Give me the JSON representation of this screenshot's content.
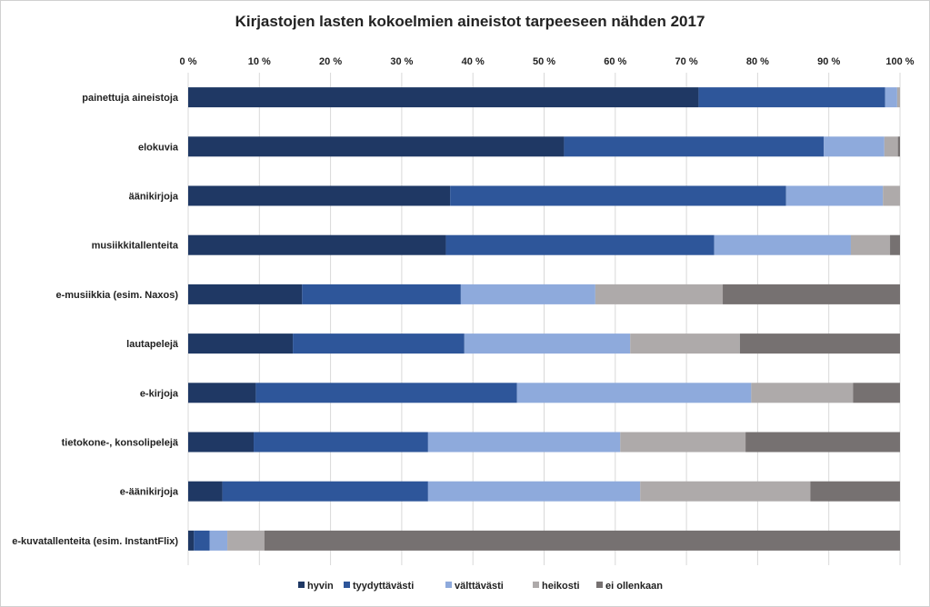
{
  "chart_data": {
    "type": "bar",
    "orientation": "horizontal",
    "stacked": true,
    "title": "Kirjastojen lasten kokoelmien aineistot tarpeeseen nähden 2017",
    "xlabel": "",
    "ylabel": "",
    "xlim": [
      0,
      100
    ],
    "x_ticks": [
      "0 %",
      "10 %",
      "20 %",
      "30 %",
      "40 %",
      "50 %",
      "60 %",
      "70 %",
      "80 %",
      "90 %",
      "100 %"
    ],
    "grid": true,
    "legend_position": "bottom",
    "categories": [
      "painettuja aineistoja",
      "elokuvia",
      "äänikirjoja",
      "musiikkitallenteita",
      "e-musiikkia (esim. Naxos)",
      "lautapelejä",
      "e-kirjoja",
      "tietokone-, konsolipelejä",
      "e-äänikirjoja",
      "e-kuvatallenteita (esim. InstantFlix)"
    ],
    "series": [
      {
        "name": "hyvin",
        "color": "#1f3864",
        "values": [
          71.7,
          52.8,
          36.8,
          36.2,
          16.0,
          14.7,
          9.5,
          9.2,
          4.8,
          0.8
        ]
      },
      {
        "name": "tyydyttävästi",
        "color": "#2e569a",
        "values": [
          26.2,
          36.5,
          47.2,
          37.7,
          22.3,
          24.1,
          36.7,
          24.5,
          28.9,
          2.2
        ]
      },
      {
        "name": "välttävästi",
        "color": "#8eaadc",
        "values": [
          1.7,
          8.5,
          13.6,
          19.2,
          18.9,
          23.3,
          32.9,
          27.0,
          29.8,
          2.5
        ]
      },
      {
        "name": "heikosti",
        "color": "#aeaaaa",
        "values": [
          0.4,
          1.9,
          2.4,
          5.5,
          17.9,
          15.4,
          14.3,
          17.6,
          23.9,
          5.2
        ]
      },
      {
        "name": "ei ollenkaan",
        "color": "#767171",
        "values": [
          0.0,
          0.3,
          0.0,
          1.4,
          24.9,
          22.5,
          6.6,
          21.7,
          12.6,
          89.3
        ]
      }
    ]
  }
}
